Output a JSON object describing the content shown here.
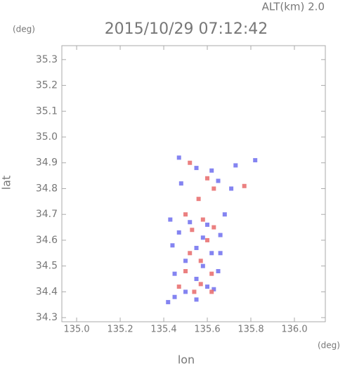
{
  "chart_data": {
    "type": "scatter",
    "title": "2015/10/29 07:12:42",
    "subtitle": "ALT(km) 2.0",
    "y_unit": "(deg)",
    "x_unit": "(deg)",
    "x_label": "lon",
    "y_label": "lat",
    "xlim": [
      134.932,
      136.142
    ],
    "ylim": [
      34.284,
      35.354
    ],
    "xticks": [
      {
        "value": 135,
        "label": "135.0"
      },
      135.2,
      135.4,
      135.6,
      135.8,
      {
        "value": 136,
        "label": "136.0"
      }
    ],
    "yticks": [
      34.3,
      34.4,
      34.5,
      34.6,
      34.7,
      34.8,
      34.9,
      {
        "value": 35,
        "label": "35.0"
      },
      35.1,
      35.2,
      35.3
    ],
    "grid": false,
    "series": [
      {
        "color": "#6f6fee",
        "x": [
          135.47,
          135.55,
          135.62,
          135.73,
          135.82,
          135.48,
          135.65,
          135.71,
          135.43,
          135.52,
          135.6,
          135.66,
          135.44,
          135.55,
          135.62,
          135.5,
          135.58,
          135.45,
          135.65,
          135.55,
          135.6,
          135.63,
          135.5,
          135.45,
          135.55,
          135.42,
          135.58,
          135.47,
          135.68,
          135.66
        ],
        "values": [
          34.92,
          34.88,
          34.87,
          34.89,
          34.91,
          34.82,
          34.83,
          34.8,
          34.68,
          34.67,
          34.66,
          34.62,
          34.58,
          34.57,
          34.55,
          34.52,
          34.5,
          34.47,
          34.48,
          34.45,
          34.42,
          34.41,
          34.4,
          34.38,
          34.37,
          34.36,
          34.61,
          34.63,
          34.7,
          34.55
        ]
      },
      {
        "color": "#e86a6a",
        "x": [
          135.52,
          135.6,
          135.77,
          135.63,
          135.56,
          135.5,
          135.58,
          135.53,
          135.6,
          135.52,
          135.57,
          135.62,
          135.5,
          135.57,
          135.62,
          135.47,
          135.54,
          135.63
        ],
        "values": [
          34.9,
          34.84,
          34.81,
          34.8,
          34.76,
          34.7,
          34.68,
          34.64,
          34.6,
          34.55,
          34.52,
          34.47,
          34.48,
          34.43,
          34.4,
          34.42,
          34.4,
          34.65
        ]
      }
    ]
  }
}
